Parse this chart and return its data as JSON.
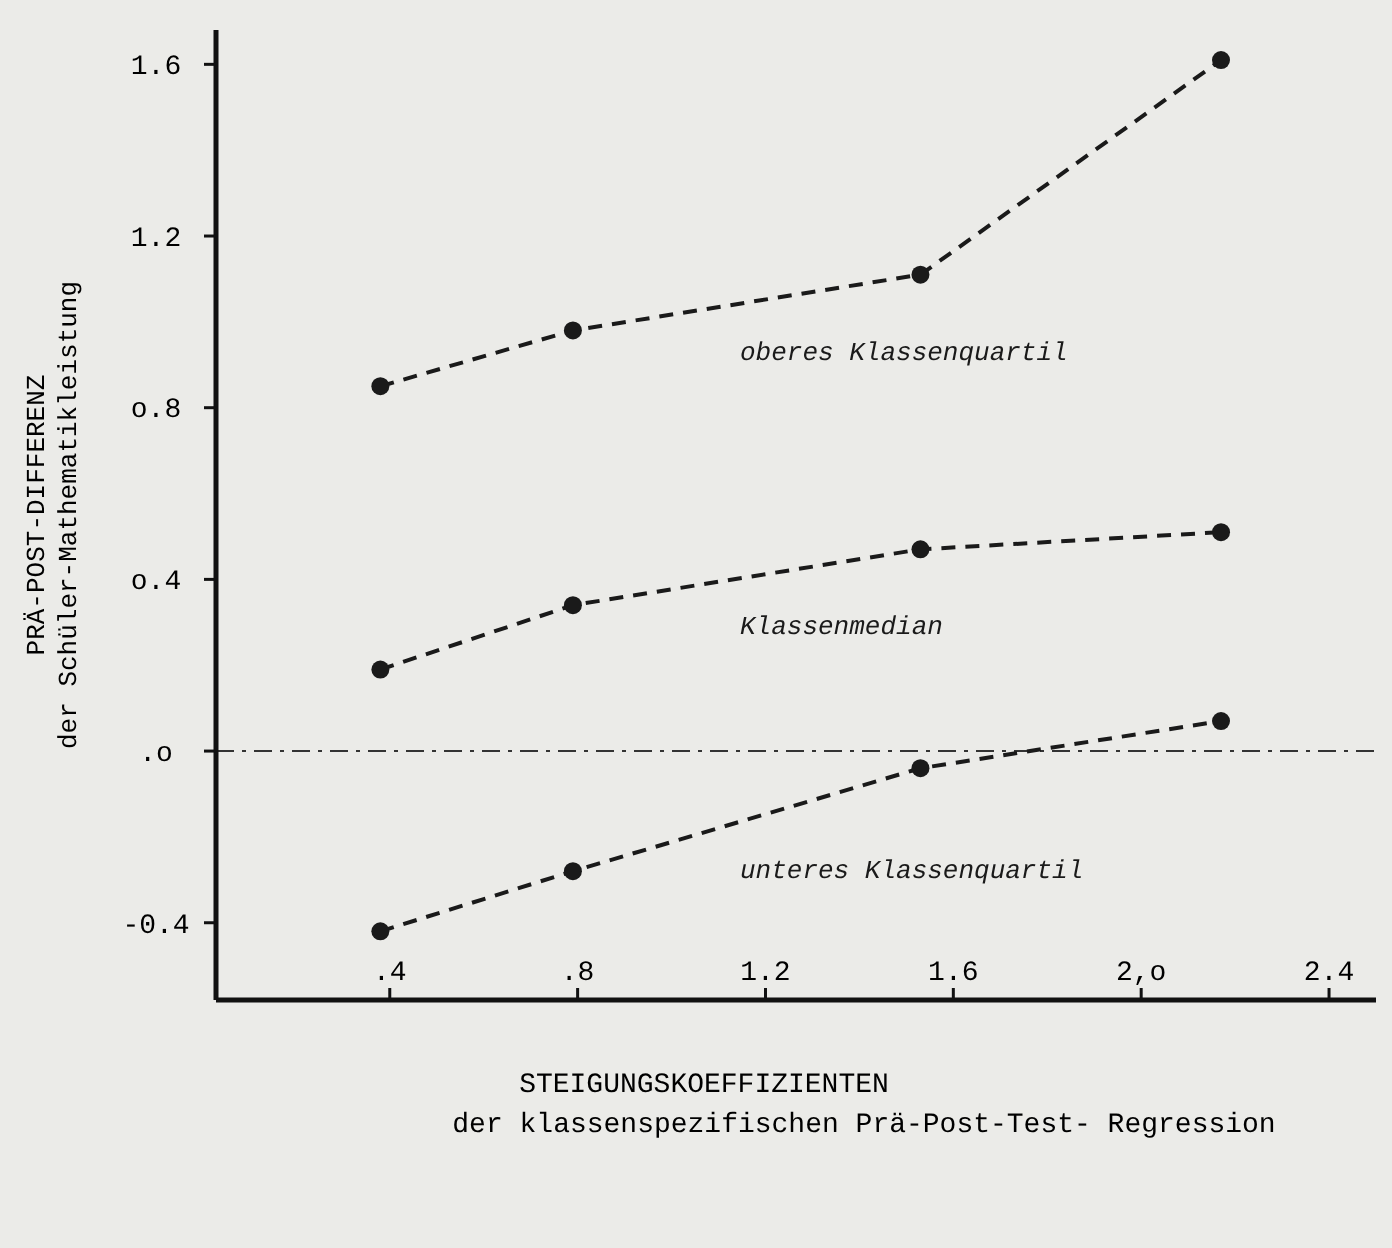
{
  "chart_data": {
    "type": "line",
    "xlabel": "STEIGUNGSKOEFFIZIENTEN\nder klassenspezifischen Prä-Post-Test- Regression",
    "ylabel": "PRÄ-POST-DIFFERENZ\nder Schüler-Mathematikleistung",
    "x": [
      0.38,
      0.79,
      1.53,
      2.17
    ],
    "series": [
      {
        "name": "oberes Klassenquartil",
        "color": "#1a1a1a",
        "line_style": "dashed",
        "values": [
          0.85,
          0.98,
          1.11,
          1.61
        ]
      },
      {
        "name": "Klassenmedian",
        "color": "#1a1a1a",
        "line_style": "dashed",
        "values": [
          0.19,
          0.34,
          0.47,
          0.51
        ]
      },
      {
        "name": "unteres Klassenquartil",
        "color": "#1a1a1a",
        "line_style": "dashed",
        "values": [
          -0.42,
          -0.28,
          -0.04,
          0.07
        ]
      }
    ],
    "xlim": [
      0.03,
      2.5
    ],
    "ylim": [
      -0.58,
      1.68
    ],
    "xticks": [
      {
        "value": 0.4,
        "label": ".4"
      },
      {
        "value": 0.8,
        "label": ".8"
      },
      1.2,
      1.6,
      {
        "value": 2.0,
        "label": "2,o"
      },
      2.4
    ],
    "yticks": [
      {
        "value": -0.4,
        "label": "-0.4"
      },
      {
        "value": 0,
        "label": ".o"
      },
      {
        "value": 0.4,
        "label": "o.4"
      },
      {
        "value": 0.8,
        "label": "o.8"
      },
      1.2,
      1.6
    ],
    "ref_lines": [
      {
        "axis": "y",
        "value": 0,
        "line_style": "dashdot"
      }
    ],
    "marker": "circle",
    "grid": false
  }
}
